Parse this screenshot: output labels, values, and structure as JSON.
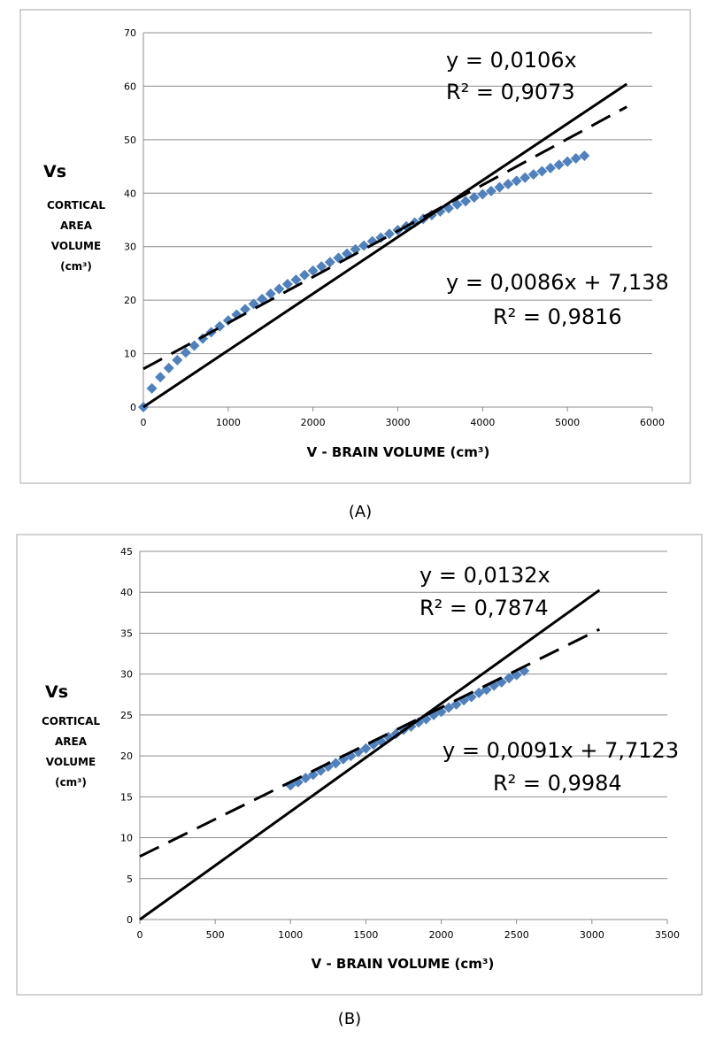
{
  "chart_data": [
    {
      "type": "scatter",
      "caption": "(A)",
      "xlim": [
        0,
        6000
      ],
      "ylim": [
        0,
        70
      ],
      "xticks": [
        0,
        1000,
        2000,
        3000,
        4000,
        5000,
        6000
      ],
      "yticks": [
        0,
        10,
        20,
        30,
        40,
        50,
        60,
        70
      ],
      "grid": "horizontal",
      "ylabel": [
        "Vs",
        "CORTICAL",
        "AREA",
        "VOLUME",
        "(cm³)"
      ],
      "xlabel": "V    -  BRAIN  VOLUME (cm³)",
      "marker_color": "#4f81bd",
      "series": [
        {
          "points": [
            [
              0,
              0
            ],
            [
              100,
              3.5
            ],
            [
              200,
              5.6
            ],
            [
              300,
              7.3
            ],
            [
              400,
              8.8
            ],
            [
              500,
              10.2
            ],
            [
              600,
              11.5
            ],
            [
              700,
              12.8
            ],
            [
              800,
              14.0
            ],
            [
              900,
              15.1
            ],
            [
              1000,
              16.2
            ],
            [
              1100,
              17.3
            ],
            [
              1200,
              18.3
            ],
            [
              1300,
              19.3
            ],
            [
              1400,
              20.2
            ],
            [
              1500,
              21.2
            ],
            [
              1600,
              22.1
            ],
            [
              1700,
              23.0
            ],
            [
              1800,
              23.8
            ],
            [
              1900,
              24.7
            ],
            [
              2000,
              25.5
            ],
            [
              2100,
              26.3
            ],
            [
              2200,
              27.1
            ],
            [
              2300,
              27.9
            ],
            [
              2400,
              28.7
            ],
            [
              2500,
              29.5
            ],
            [
              2600,
              30.2
            ],
            [
              2700,
              31.0
            ],
            [
              2800,
              31.7
            ],
            [
              2900,
              32.4
            ],
            [
              3000,
              33.1
            ],
            [
              3100,
              33.8
            ],
            [
              3200,
              34.5
            ],
            [
              3300,
              35.2
            ],
            [
              3400,
              35.9
            ],
            [
              3500,
              36.6
            ],
            [
              3600,
              37.2
            ],
            [
              3700,
              37.9
            ],
            [
              3800,
              38.5
            ],
            [
              3900,
              39.2
            ],
            [
              4000,
              39.8
            ],
            [
              4100,
              40.4
            ],
            [
              4200,
              41.1
            ],
            [
              4300,
              41.7
            ],
            [
              4400,
              42.3
            ],
            [
              4500,
              42.9
            ],
            [
              4600,
              43.5
            ],
            [
              4700,
              44.1
            ],
            [
              4800,
              44.7
            ],
            [
              4900,
              45.3
            ],
            [
              5000,
              45.9
            ],
            [
              5100,
              46.5
            ],
            [
              5200,
              47.0
            ]
          ]
        }
      ],
      "trendlines": [
        {
          "style": "solid",
          "slope": 0.0106,
          "intercept": 0,
          "x_end": 5700,
          "label": [
            "y = 0,0106x",
            "R² = 0,9073"
          ]
        },
        {
          "style": "dashed",
          "slope": 0.0086,
          "intercept": 7.138,
          "x_end": 5700,
          "label": [
            "y = 0,0086x + 7,138",
            "R² = 0,9816"
          ]
        }
      ]
    },
    {
      "type": "scatter",
      "caption": "(B)",
      "xlim": [
        0,
        3500
      ],
      "ylim": [
        0,
        45
      ],
      "xticks": [
        0,
        500,
        1000,
        1500,
        2000,
        2500,
        3000,
        3500
      ],
      "yticks": [
        0,
        5,
        10,
        15,
        20,
        25,
        30,
        35,
        40,
        45
      ],
      "grid": "horizontal",
      "ylabel": [
        "Vs",
        "CORTICAL",
        "AREA",
        "VOLUME",
        "(cm³)"
      ],
      "xlabel": "V    -  BRAIN  VOLUME (cm³)",
      "marker_color": "#4f81bd",
      "series": [
        {
          "points": [
            [
              1000,
              16.4
            ],
            [
              1050,
              16.8
            ],
            [
              1100,
              17.3
            ],
            [
              1150,
              17.7
            ],
            [
              1200,
              18.2
            ],
            [
              1250,
              18.7
            ],
            [
              1300,
              19.1
            ],
            [
              1350,
              19.6
            ],
            [
              1400,
              20.0
            ],
            [
              1450,
              20.5
            ],
            [
              1500,
              20.9
            ],
            [
              1550,
              21.4
            ],
            [
              1600,
              21.8
            ],
            [
              1650,
              22.3
            ],
            [
              1700,
              22.7
            ],
            [
              1750,
              23.2
            ],
            [
              1800,
              23.6
            ],
            [
              1850,
              24.1
            ],
            [
              1900,
              24.5
            ],
            [
              1950,
              25.0
            ],
            [
              2000,
              25.4
            ],
            [
              2050,
              25.9
            ],
            [
              2100,
              26.3
            ],
            [
              2150,
              26.8
            ],
            [
              2200,
              27.2
            ],
            [
              2250,
              27.7
            ],
            [
              2300,
              28.1
            ],
            [
              2350,
              28.6
            ],
            [
              2400,
              29.0
            ],
            [
              2450,
              29.5
            ],
            [
              2500,
              29.9
            ],
            [
              2550,
              30.4
            ]
          ]
        }
      ],
      "trendlines": [
        {
          "style": "solid",
          "slope": 0.0132,
          "intercept": 0,
          "x_end": 3050,
          "label": [
            "y = 0,0132x",
            "R² = 0,7874"
          ]
        },
        {
          "style": "dashed",
          "slope": 0.0091,
          "intercept": 7.7123,
          "x_end": 3050,
          "label": [
            "y = 0,0091x + 7,7123",
            "R² = 0,9984"
          ]
        }
      ]
    }
  ]
}
